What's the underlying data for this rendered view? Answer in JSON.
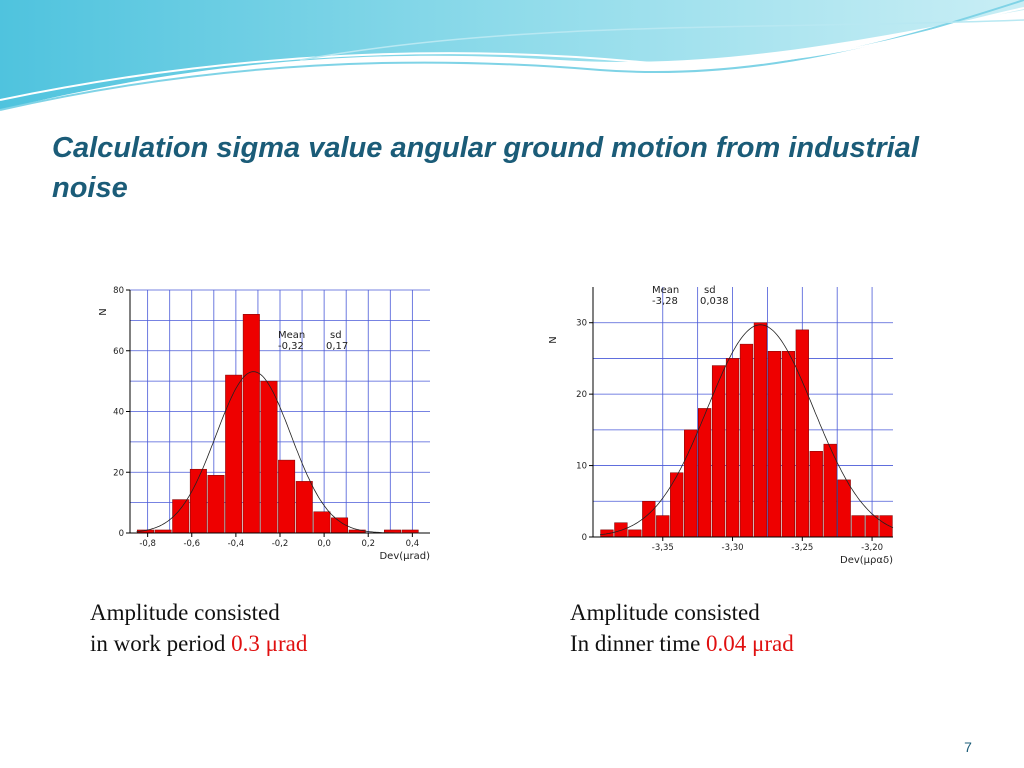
{
  "slide": {
    "title_lines": [
      "Calculation sigma value angular ground motion from industrial",
      "noise"
    ],
    "captions": [
      {
        "line1": "Amplitude consisted",
        "line2_text": "in work period ",
        "line2_value": "0.3 μrad"
      },
      {
        "line1": "Amplitude consisted",
        "line2_text": "In dinner time ",
        "line2_value": "0.04 μrad"
      }
    ],
    "page_number": "7"
  },
  "chart_data": [
    {
      "type": "histogram",
      "color": "#ee0000",
      "grid": true,
      "bins": [
        -0.85,
        -0.77,
        -0.69,
        -0.61,
        -0.53,
        -0.45,
        -0.37,
        -0.29,
        -0.21,
        -0.13,
        -0.05,
        0.03,
        0.11,
        0.19,
        0.27,
        0.35,
        0.43
      ],
      "values": [
        1,
        1,
        11,
        21,
        19,
        52,
        72,
        50,
        24,
        17,
        7,
        5,
        1,
        0,
        1,
        1
      ],
      "xlim": [
        -0.88,
        0.48
      ],
      "ylim": [
        0,
        80
      ],
      "xticks": [
        {
          "value": -0.8,
          "label": "-0,8"
        },
        {
          "value": -0.6,
          "label": "-0,6"
        },
        {
          "value": -0.4,
          "label": "-0,4"
        },
        {
          "value": -0.2,
          "label": "-0,2"
        },
        {
          "value": 0.0,
          "label": "0,0"
        },
        {
          "value": 0.2,
          "label": "0,2"
        },
        {
          "value": 0.4,
          "label": "0,4"
        }
      ],
      "yticks": [
        0,
        20,
        40,
        60,
        80
      ],
      "x_label": "Dev(μrad)",
      "y_label": "N",
      "fit": {
        "mean_label": "Mean",
        "sd_label": "sd",
        "mean": {
          "value": -0.32,
          "label": "-0,32"
        },
        "sd": {
          "value": 0.17,
          "label": "0,17"
        }
      }
    },
    {
      "type": "histogram",
      "color": "#ee0000",
      "grid": true,
      "bins": [
        -3.395,
        -3.385,
        -3.375,
        -3.365,
        -3.355,
        -3.345,
        -3.335,
        -3.325,
        -3.315,
        -3.305,
        -3.295,
        -3.285,
        -3.275,
        -3.265,
        -3.255,
        -3.245,
        -3.235,
        -3.225,
        -3.215,
        -3.205,
        -3.195,
        -3.185
      ],
      "values": [
        1,
        2,
        1,
        5,
        3,
        9,
        15,
        18,
        24,
        25,
        27,
        30,
        26,
        26,
        29,
        12,
        13,
        8,
        3,
        3,
        3
      ],
      "xlim": [
        -3.4,
        -3.185
      ],
      "ylim": [
        0,
        35
      ],
      "xticks": [
        {
          "value": -3.35,
          "label": "-3,35"
        },
        {
          "value": -3.3,
          "label": "-3,30"
        },
        {
          "value": -3.25,
          "label": "-3,25"
        },
        {
          "value": -3.2,
          "label": "-3,20"
        }
      ],
      "yticks": [
        0,
        10,
        20,
        30
      ],
      "x_label": "Dev(μραδ)",
      "y_label": "N",
      "fit": {
        "mean_label": "Mean",
        "sd_label": "sd",
        "mean": {
          "value": -3.28,
          "label": "-3,28"
        },
        "sd": {
          "value": 0.038,
          "label": "0,038"
        }
      }
    }
  ]
}
